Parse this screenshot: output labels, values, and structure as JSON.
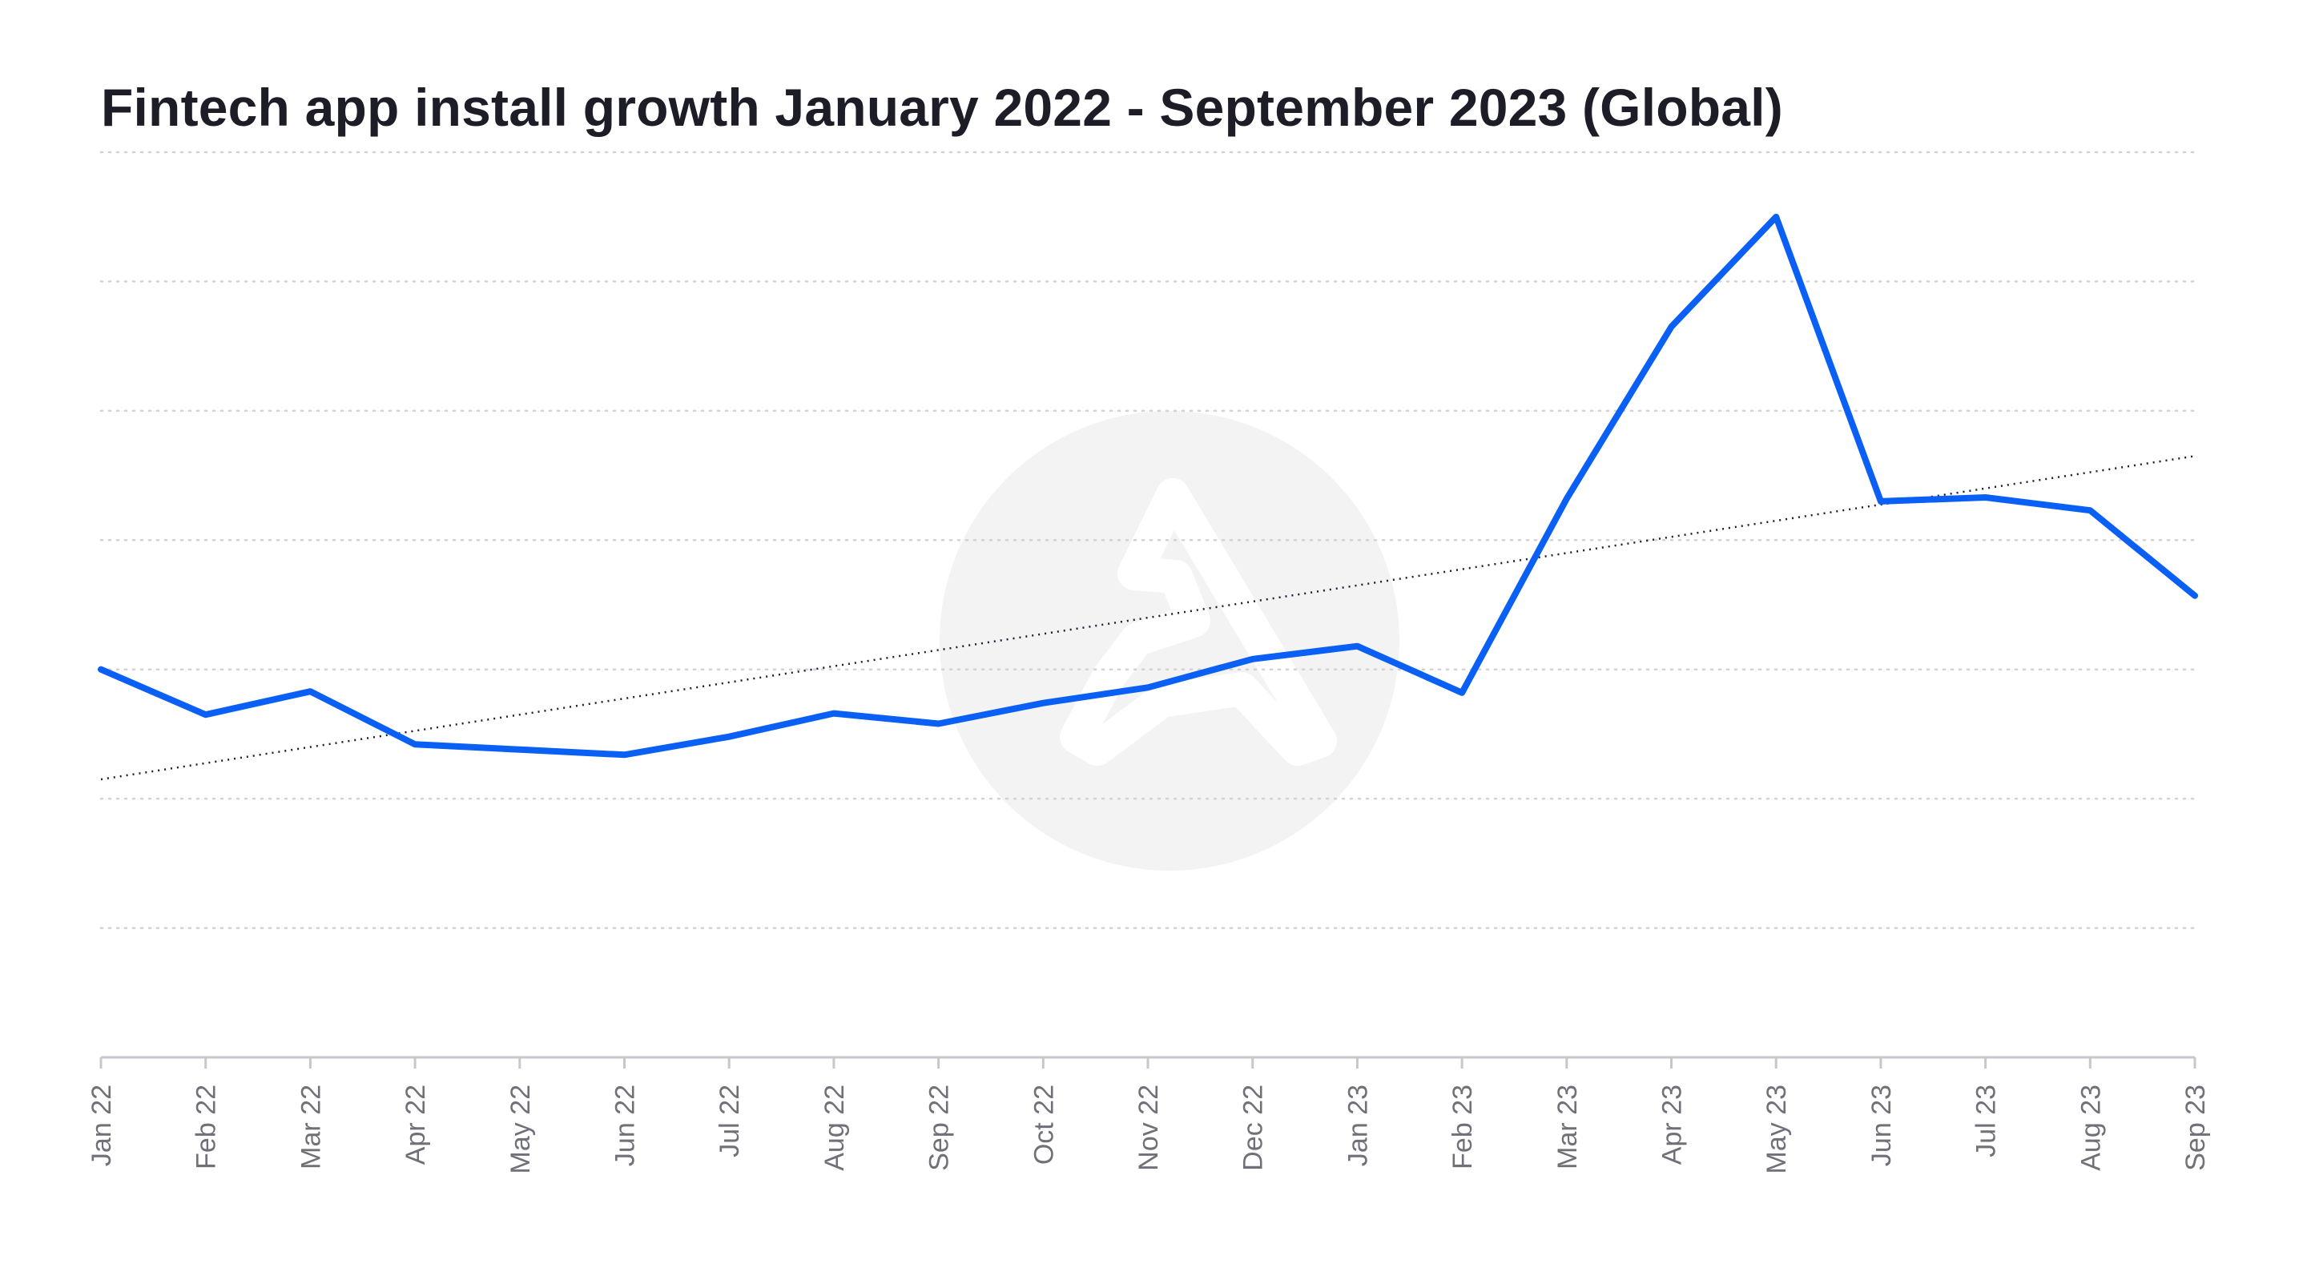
{
  "chart_data": {
    "type": "line",
    "title": "Fintech app install growth January 2022 - September 2023 (Global)",
    "categories": [
      "Jan 22",
      "Feb 22",
      "Mar 22",
      "Apr 22",
      "May 22",
      "Jun 22",
      "Jul 22",
      "Aug 22",
      "Sep 22",
      "Oct 22",
      "Nov 22",
      "Dec 22",
      "Jan 23",
      "Feb 23",
      "Mar 23",
      "Apr 23",
      "May 23",
      "Jun 23",
      "Jul 23",
      "Aug 23",
      "Sep 23"
    ],
    "series": [
      {
        "values": [
          3.0,
          2.65,
          2.83,
          2.42,
          2.38,
          2.34,
          2.48,
          2.66,
          2.58,
          2.74,
          2.86,
          3.08,
          3.18,
          2.82,
          4.32,
          5.65,
          6.5,
          4.3,
          4.33,
          4.23,
          3.57
        ]
      }
    ],
    "trendline": {
      "style": "dotted",
      "start": 2.15,
      "end": 4.65
    },
    "ylim": [
      0,
      7
    ],
    "y_gridlines": [
      1,
      2,
      3,
      4,
      5,
      6,
      7
    ],
    "grid": true,
    "y_tick_labels_shown": false,
    "xlabel": "",
    "ylabel": "",
    "colors": {
      "series": "#0a5ff5",
      "trendline": "#1c1d3a",
      "grid": "#d2d2d6",
      "axis": "#c7c7cc",
      "watermark": "#f3f3f3"
    },
    "watermark_icon": "logo-icon"
  }
}
